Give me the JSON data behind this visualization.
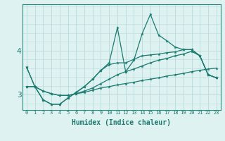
{
  "xlabel": "Humidex (Indice chaleur)",
  "bg_color": "#dff2f2",
  "grid_color": "#b8dada",
  "line_color": "#1a7a6e",
  "spine_color": "#2a8a7e",
  "x": [
    0,
    1,
    2,
    3,
    4,
    5,
    6,
    7,
    8,
    9,
    10,
    11,
    12,
    13,
    14,
    15,
    16,
    17,
    18,
    19,
    20,
    21,
    22,
    23
  ],
  "line_spiky": [
    3.62,
    3.18,
    2.88,
    2.78,
    2.78,
    2.92,
    3.05,
    3.18,
    3.35,
    3.55,
    3.72,
    4.52,
    3.52,
    3.78,
    4.38,
    4.82,
    4.35,
    4.22,
    4.08,
    4.02,
    4.02,
    3.88,
    3.45,
    3.38
  ],
  "line_smooth1": [
    3.62,
    3.18,
    2.88,
    2.78,
    2.78,
    2.92,
    3.05,
    3.18,
    3.35,
    3.55,
    3.68,
    3.72,
    3.72,
    3.8,
    3.88,
    3.9,
    3.92,
    3.95,
    3.97,
    4.02,
    4.02,
    3.88,
    3.45,
    3.38
  ],
  "line_smooth2": [
    3.18,
    3.18,
    3.08,
    3.02,
    2.98,
    2.98,
    3.02,
    3.08,
    3.15,
    3.25,
    3.35,
    3.45,
    3.52,
    3.58,
    3.65,
    3.72,
    3.78,
    3.82,
    3.88,
    3.92,
    3.98,
    3.88,
    3.45,
    3.38
  ],
  "line_flat": [
    3.18,
    3.18,
    3.08,
    3.02,
    2.98,
    2.98,
    3.02,
    3.05,
    3.1,
    3.15,
    3.18,
    3.22,
    3.25,
    3.28,
    3.32,
    3.35,
    3.38,
    3.42,
    3.45,
    3.48,
    3.52,
    3.55,
    3.58,
    3.6
  ],
  "ylim": [
    2.65,
    5.05
  ],
  "yticks": [
    3.0,
    4.0
  ],
  "ytick_labels": [
    "3",
    "4"
  ],
  "title_fontsize": 7
}
